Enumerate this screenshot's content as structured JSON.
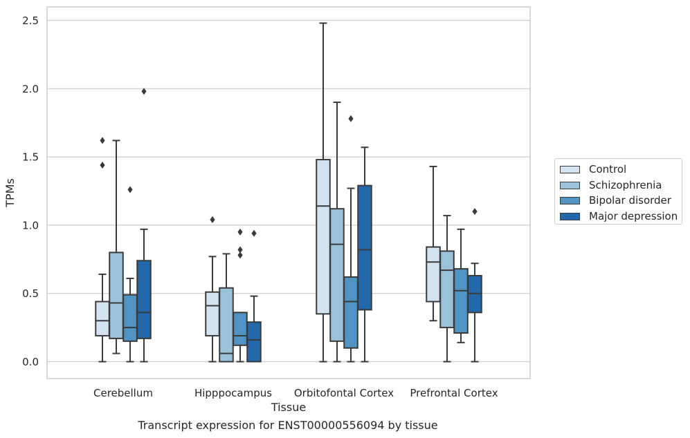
{
  "chart_data": {
    "type": "box",
    "categories": [
      "Cerebellum",
      "Hipppocampus",
      "Orbitofontal Cortex",
      "Prefrontal Cortex"
    ],
    "xlabel": "Tissue",
    "ylabel": "TPMs",
    "ylim": [
      -0.12,
      2.61
    ],
    "yticks": [
      "0.0",
      "0.5",
      "1.0",
      "1.5",
      "2.0",
      "2.5"
    ],
    "grid": "horizontal",
    "legend_position": "right",
    "series": [
      {
        "name": "Control",
        "color": "#d4e3f2",
        "boxes": [
          {
            "whisker_low": 0.0,
            "q1": 0.19,
            "median": 0.3,
            "q3": 0.44,
            "whisker_high": 0.64,
            "outliers": [
              1.62,
              1.44
            ]
          },
          {
            "whisker_low": 0.0,
            "q1": 0.19,
            "median": 0.41,
            "q3": 0.51,
            "whisker_high": 0.77,
            "outliers": [
              1.04
            ]
          },
          {
            "whisker_low": 0.0,
            "q1": 0.35,
            "median": 1.14,
            "q3": 1.48,
            "whisker_high": 2.48,
            "outliers": []
          },
          {
            "whisker_low": 0.3,
            "q1": 0.44,
            "median": 0.73,
            "q3": 0.84,
            "whisker_high": 1.43,
            "outliers": []
          }
        ]
      },
      {
        "name": "Schizophrenia",
        "color": "#9ac2da",
        "boxes": [
          {
            "whisker_low": 0.06,
            "q1": 0.17,
            "median": 0.43,
            "q3": 0.8,
            "whisker_high": 1.62,
            "outliers": []
          },
          {
            "whisker_low": 0.0,
            "q1": 0.0,
            "median": 0.06,
            "q3": 0.54,
            "whisker_high": 0.79,
            "outliers": []
          },
          {
            "whisker_low": 0.0,
            "q1": 0.15,
            "median": 0.86,
            "q3": 1.12,
            "whisker_high": 1.9,
            "outliers": []
          },
          {
            "whisker_low": 0.0,
            "q1": 0.25,
            "median": 0.67,
            "q3": 0.81,
            "whisker_high": 1.07,
            "outliers": []
          }
        ]
      },
      {
        "name": "Bipolar disorder",
        "color": "#5194c3",
        "boxes": [
          {
            "whisker_low": 0.0,
            "q1": 0.15,
            "median": 0.25,
            "q3": 0.49,
            "whisker_high": 0.61,
            "outliers": [
              1.26
            ]
          },
          {
            "whisker_low": 0.0,
            "q1": 0.12,
            "median": 0.19,
            "q3": 0.36,
            "whisker_high": 0.36,
            "outliers": [
              0.95,
              0.82,
              0.78
            ]
          },
          {
            "whisker_low": 0.0,
            "q1": 0.1,
            "median": 0.44,
            "q3": 0.62,
            "whisker_high": 1.27,
            "outliers": [
              1.78
            ]
          },
          {
            "whisker_low": 0.14,
            "q1": 0.21,
            "median": 0.52,
            "q3": 0.68,
            "whisker_high": 0.97,
            "outliers": []
          }
        ]
      },
      {
        "name": "Major depression",
        "color": "#2368aa",
        "boxes": [
          {
            "whisker_low": 0.0,
            "q1": 0.17,
            "median": 0.36,
            "q3": 0.74,
            "whisker_high": 0.97,
            "outliers": [
              1.98
            ]
          },
          {
            "whisker_low": 0.0,
            "q1": 0.0,
            "median": 0.16,
            "q3": 0.29,
            "whisker_high": 0.48,
            "outliers": [
              0.94
            ]
          },
          {
            "whisker_low": 0.0,
            "q1": 0.38,
            "median": 0.82,
            "q3": 1.29,
            "whisker_high": 1.57,
            "outliers": []
          },
          {
            "whisker_low": 0.0,
            "q1": 0.36,
            "median": 0.5,
            "q3": 0.63,
            "whisker_high": 0.72,
            "outliers": [
              1.1
            ]
          }
        ]
      }
    ]
  },
  "caption": "Transcript expression for ENST00000556094 by tissue"
}
